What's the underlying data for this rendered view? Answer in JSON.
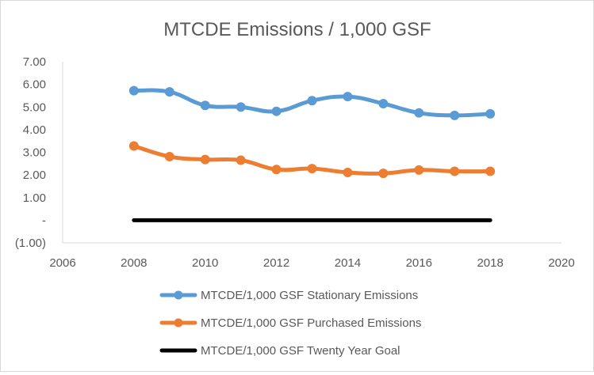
{
  "chart_data": {
    "type": "line",
    "title": "MTCDE Emissions / 1,000 GSF",
    "xlabel": "",
    "ylabel": "",
    "xlim": [
      2006,
      2020
    ],
    "ylim": [
      -1,
      7
    ],
    "x_ticks": [
      2006,
      2008,
      2010,
      2012,
      2014,
      2016,
      2018,
      2020
    ],
    "x_tick_labels": [
      "2006",
      "2008",
      "2010",
      "2012",
      "2014",
      "2016",
      "2018",
      "2020"
    ],
    "y_ticks": [
      7,
      6,
      5,
      4,
      3,
      2,
      1,
      0,
      -1
    ],
    "y_tick_labels": [
      "7.00",
      "6.00",
      "5.00",
      "4.00",
      "3.00",
      "2.00",
      "1.00",
      "-",
      "(1.00)"
    ],
    "grid": false,
    "legend_position": "bottom",
    "series": [
      {
        "name": "MTCDE/1,000 GSF Stationary Emissions",
        "color": "#5b9bd5",
        "markers": true,
        "x": [
          2008,
          2009,
          2010,
          2011,
          2012,
          2013,
          2014,
          2015,
          2016,
          2017,
          2018
        ],
        "y": [
          5.72,
          5.67,
          5.07,
          5.0,
          4.81,
          5.28,
          5.46,
          5.15,
          4.74,
          4.63,
          4.7
        ]
      },
      {
        "name": "MTCDE/1,000 GSF Purchased Emissions",
        "color": "#ed7d31",
        "markers": true,
        "x": [
          2008,
          2009,
          2010,
          2011,
          2012,
          2013,
          2014,
          2015,
          2016,
          2017,
          2018
        ],
        "y": [
          3.28,
          2.81,
          2.68,
          2.65,
          2.24,
          2.28,
          2.11,
          2.07,
          2.22,
          2.16,
          2.16
        ]
      },
      {
        "name": "MTCDE/1,000 GSF Twenty Year Goal",
        "color": "#000000",
        "markers": false,
        "x": [
          2008,
          2018
        ],
        "y": [
          0,
          0
        ]
      }
    ]
  }
}
